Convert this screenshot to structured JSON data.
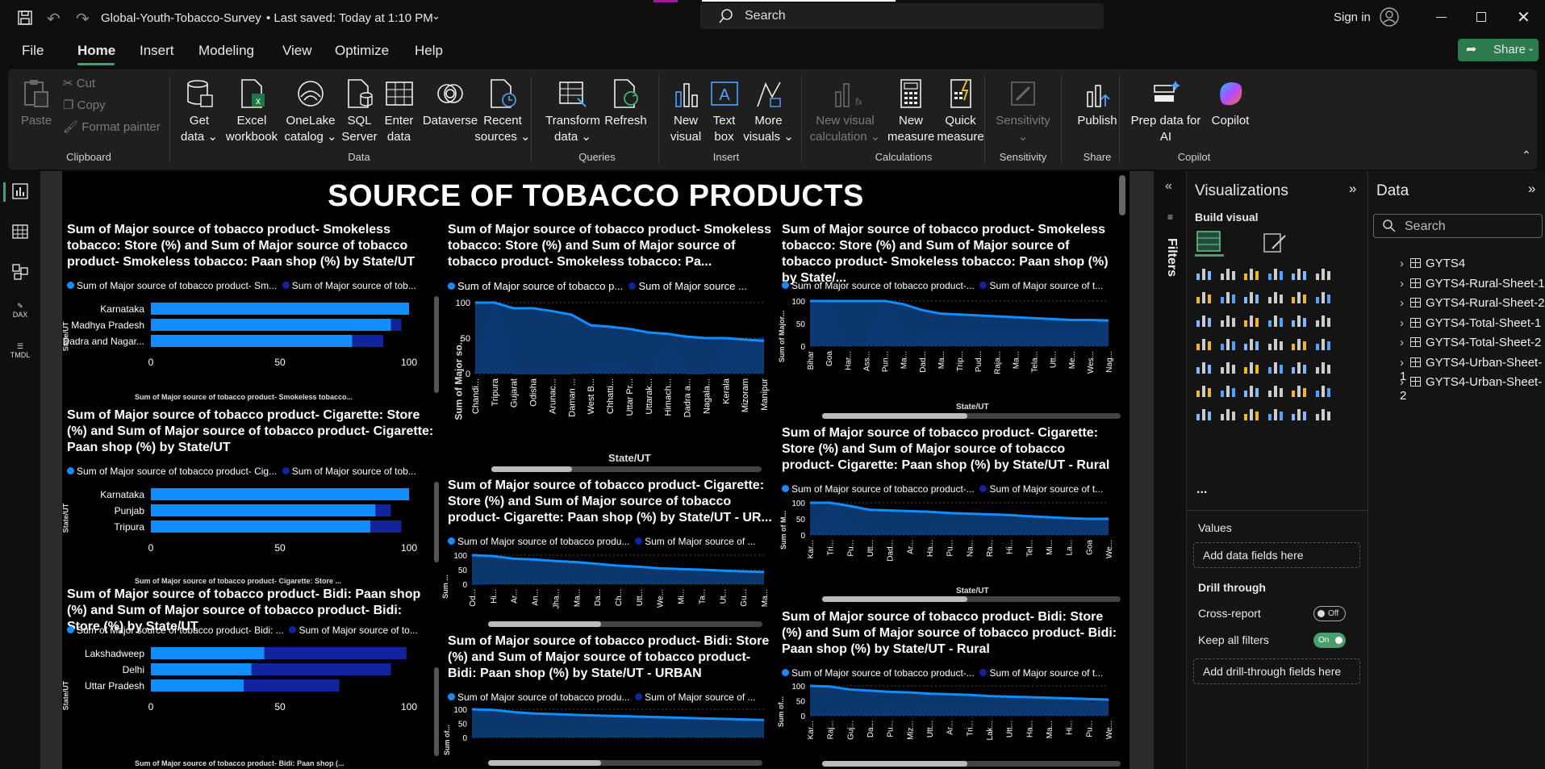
{
  "titlebar": {
    "file_name": "Global-Youth-Tobacco-Survey",
    "saved_status": "Last saved: Today at 1:10 PM",
    "search_placeholder": "Search",
    "sign_in": "Sign in"
  },
  "menu": {
    "tabs": [
      "File",
      "Home",
      "Insert",
      "Modeling",
      "View",
      "Optimize",
      "Help"
    ],
    "active_tab": "Home",
    "share_label": "Share"
  },
  "ribbon": {
    "clipboard": {
      "paste": "Paste",
      "cut": "Cut",
      "copy": "Copy",
      "format_painter": "Format painter",
      "group": "Clipboard"
    },
    "data": {
      "get_data_1": "Get",
      "get_data_2": "data",
      "excel_1": "Excel",
      "excel_2": "workbook",
      "onelake_1": "OneLake",
      "onelake_2": "catalog",
      "sql_1": "SQL",
      "sql_2": "Server",
      "enter_1": "Enter",
      "enter_2": "data",
      "dataverse": "Dataverse",
      "recent_1": "Recent",
      "recent_2": "sources",
      "group": "Data"
    },
    "queries": {
      "transform_1": "Transform",
      "transform_2": "data",
      "refresh": "Refresh",
      "group": "Queries"
    },
    "insert": {
      "new_visual_1": "New",
      "new_visual_2": "visual",
      "text_box_1": "Text",
      "text_box_2": "box",
      "more_visuals_1": "More",
      "more_visuals_2": "visuals",
      "group": "Insert"
    },
    "calculations": {
      "new_visual_calc_1": "New visual",
      "new_visual_calc_2": "calculation",
      "new_measure_1": "New",
      "new_measure_2": "measure",
      "quick_measure_1": "Quick",
      "quick_measure_2": "measure",
      "group": "Calculations"
    },
    "sensitivity": {
      "label": "Sensitivity",
      "group": "Sensitivity"
    },
    "share": {
      "publish": "Publish",
      "group": "Share"
    },
    "copilot": {
      "prep_1": "Prep data for",
      "prep_2": "AI",
      "copilot": "Copilot",
      "group": "Copilot"
    }
  },
  "report": {
    "title": "SOURCE OF TOBACCO PRODUCTS",
    "v1": {
      "title": "Sum of Major source of tobacco product- Smokeless tobacco: Store (%) and Sum of Major source of tobacco product- Smokeless tobacco: Paan shop (%) by State/UT",
      "legend1": "Sum of Major source of tobacco product- Sm...",
      "legend2": "Sum of Major source of tob...",
      "xlabel": "Sum of Major source of tobacco product- Smokeless tobacco...",
      "ylabel": "State/UT"
    },
    "v2": {
      "title": "Sum of Major source of tobacco product- Cigarette: Store (%) and Sum of Major source of tobacco product- Cigarette: Paan shop (%) by State/UT",
      "legend1": "Sum of Major source of tobacco product- Cig...",
      "legend2": "Sum of Major source of tob...",
      "xlabel": "Sum of Major source of tobacco product- Cigarette: Store ...",
      "ylabel": "State/UT"
    },
    "v3": {
      "title": "Sum of Major source of tobacco product- Bidi: Paan shop (%) and Sum of Major source of tobacco product- Bidi: Store (%) by State/UT",
      "legend1": "Sum of Major source of tobacco product- Bidi: ...",
      "legend2": "Sum of Major source of to...",
      "xlabel": "Sum of Major source of tobacco product- Bidi: Paan shop (...",
      "ylabel": "State/UT"
    },
    "v4": {
      "title": "Sum of Major source of tobacco product- Smokeless tobacco: Store (%) and Sum of Major source of tobacco product- Smokeless tobacco: Pa...",
      "legend1": "Sum of Major source of tobacco p...",
      "legend2": "Sum of Major source ...",
      "xlabel": "State/UT",
      "ylabel": "Sum of Major so..."
    },
    "v5": {
      "title": "Sum of Major source of tobacco product- Cigarette: Store (%) and Sum of Major source of tobacco product- Cigarette: Paan shop (%) by State/UT - UR...",
      "legend1": "Sum of Major source of tobacco produ...",
      "legend2": "Sum of Major source of ...",
      "ylabel": "Sum ..."
    },
    "v6": {
      "title": "Sum of Major source of tobacco product- Bidi: Store (%) and Sum of Major source of tobacco product- Bidi: Paan shop (%) by State/UT - URBAN",
      "legend1": "Sum of Major source of tobacco produ...",
      "legend2": "Sum of Major source of ...",
      "ylabel": "Sum of..."
    },
    "v7": {
      "title": "Sum of Major source of tobacco product- Smokeless tobacco: Store (%) and Sum of Major source of tobacco product- Smokeless tobacco: Paan shop (%) by State/...",
      "legend1": "Sum of Major source of tobacco product-...",
      "legend2": "Sum of Major source of t...",
      "xlabel": "State/UT",
      "ylabel": "Sum of Major..."
    },
    "v8": {
      "title": "Sum of Major source of tobacco product- Cigarette: Store (%) and Sum of Major source of tobacco product- Cigarette: Paan shop (%) by State/UT - Rural",
      "legend1": "Sum of Major source of tobacco product-...",
      "legend2": "Sum of Major source of t...",
      "xlabel": "State/UT",
      "ylabel": "Sum of M..."
    },
    "v9": {
      "title": "Sum of Major source of tobacco product- Bidi: Store (%) and Sum of Major source of tobacco product- Bidi: Paan shop (%) by State/UT - Rural",
      "legend1": "Sum of Major source of tobacco product-...",
      "legend2": "Sum of Major source of t...",
      "ylabel": "Sum of..."
    }
  },
  "filters_label": "Filters",
  "viz_pane": {
    "title": "Visualizations",
    "build_visual": "Build visual",
    "values": "Values",
    "add_data_fields": "Add data fields here",
    "drill_through": "Drill through",
    "cross_report": "Cross-report",
    "cross_report_state": "Off",
    "keep_all_filters": "Keep all filters",
    "keep_all_state": "On",
    "add_drill_fields": "Add drill-through fields here",
    "more": "..."
  },
  "data_pane": {
    "title": "Data",
    "search_placeholder": "Search",
    "tables": [
      "GYTS4",
      "GYTS4-Rural-Sheet-1",
      "GYTS4-Rural-Sheet-2",
      "GYTS4-Total-Sheet-1",
      "GYTS4-Total-Sheet-2",
      "GYTS4-Urban-Sheet-1",
      "GYTS4-Urban-Sheet-2"
    ]
  },
  "colors": {
    "series1": "#118dff",
    "series2": "#12239e",
    "accent": "#4a9d6e",
    "background": "#000000"
  },
  "chart_data": [
    {
      "type": "bar",
      "orientation": "horizontal",
      "stacked": true,
      "categories": [
        "Karnataka",
        "Madhya Pradesh",
        "Dadra and Nagar..."
      ],
      "series": [
        {
          "values": [
            100,
            93,
            78
          ]
        },
        {
          "values": [
            0,
            4,
            12
          ]
        }
      ],
      "xlim": [
        0,
        100
      ],
      "xticks": [
        "0",
        "50",
        "100"
      ]
    },
    {
      "type": "bar",
      "orientation": "horizontal",
      "stacked": true,
      "categories": [
        "Karnataka",
        "Punjab",
        "Tripura"
      ],
      "series": [
        {
          "values": [
            100,
            87,
            85
          ]
        },
        {
          "values": [
            0,
            6,
            12
          ]
        }
      ],
      "xlim": [
        0,
        100
      ],
      "xticks": [
        "0",
        "50",
        "100"
      ]
    },
    {
      "type": "bar",
      "orientation": "horizontal",
      "stacked": true,
      "categories": [
        "Lakshadweep",
        "Delhi",
        "Uttar Pradesh"
      ],
      "series": [
        {
          "values": [
            44,
            39,
            36
          ]
        },
        {
          "values": [
            55,
            54,
            37
          ]
        }
      ],
      "xlim": [
        0,
        100
      ],
      "xticks": [
        "0",
        "50",
        "100"
      ]
    },
    {
      "type": "area",
      "x": [
        "Chandi...",
        "Tripura",
        "Gujarat",
        "Odisha",
        "Arunac...",
        "Daman ...",
        "West B...",
        "Chhatti...",
        "Uttar Pr...",
        "Uttarak...",
        "Himach...",
        "Dadra a...",
        "Nagala...",
        "Kerala",
        "Mizoram",
        "Manipur"
      ],
      "series": [
        {
          "values": [
            100,
            100,
            92,
            92,
            88,
            83,
            68,
            66,
            63,
            58,
            56,
            52,
            50,
            50,
            48,
            46
          ]
        },
        {
          "values": [
            0,
            100,
            0,
            0,
            0,
            0,
            10,
            18,
            6,
            0,
            45,
            0,
            0,
            40,
            46,
            50
          ]
        }
      ],
      "ylim": [
        0,
        100
      ],
      "yticks": [
        "0",
        "50",
        "100"
      ]
    },
    {
      "type": "area",
      "x": [
        "Od...",
        "Hi...",
        "Ar...",
        "An...",
        "Jha...",
        "Ma...",
        "Da...",
        "Ch...",
        "Utt...",
        "We...",
        "Mi...",
        "Ta...",
        "Ut...",
        "Gu...",
        "Ma..."
      ],
      "series": [
        {
          "values": [
            100,
            97,
            88,
            85,
            80,
            76,
            70,
            64,
            60,
            55,
            52,
            50,
            47,
            44,
            42
          ]
        },
        {
          "values": [
            0,
            2,
            5,
            5,
            10,
            8,
            12,
            8,
            10,
            6,
            8,
            5,
            10,
            5,
            6
          ]
        }
      ],
      "ylim": [
        0,
        100
      ],
      "yticks": [
        "0",
        "50",
        "100"
      ]
    },
    {
      "type": "area",
      "x": [
        "",
        "",
        "",
        "",
        "",
        "",
        "",
        "",
        "",
        "",
        "",
        "",
        "",
        "",
        ""
      ],
      "series": [
        {
          "values": [
            100,
            98,
            90,
            85,
            83,
            80,
            78,
            76,
            74,
            72,
            70,
            68,
            66,
            64,
            62
          ]
        },
        {
          "values": [
            0,
            5,
            8,
            10,
            12,
            10,
            8,
            12,
            10,
            20,
            10,
            12,
            8,
            10,
            12
          ]
        }
      ],
      "ylim": [
        0,
        100
      ],
      "yticks": [
        "0",
        "50",
        "100"
      ]
    },
    {
      "type": "area",
      "x": [
        "Bihar",
        "Goa",
        "Har...",
        "Ass...",
        "Pun...",
        "Ma...",
        "Dad...",
        "Ma...",
        "Trip...",
        "Pud...",
        "Raja...",
        "Ma...",
        "Tela...",
        "Utt...",
        "Me...",
        "Wes...",
        "Nag..."
      ],
      "series": [
        {
          "values": [
            100,
            100,
            100,
            100,
            100,
            93,
            80,
            72,
            70,
            68,
            66,
            64,
            62,
            60,
            58,
            58,
            57
          ]
        },
        {
          "values": [
            100,
            100,
            0,
            10,
            100,
            20,
            25,
            30,
            28,
            35,
            30,
            32,
            34,
            35,
            38,
            30,
            56
          ]
        }
      ],
      "ylim": [
        0,
        100
      ],
      "yticks": [
        "0",
        "50",
        "100"
      ]
    },
    {
      "type": "area",
      "x": [
        "Kar...",
        "Tri...",
        "Pu...",
        "Utt...",
        "Dad...",
        "Ar...",
        "Ha...",
        "Pu...",
        "Na...",
        "Ra...",
        "Hi...",
        "Tel...",
        "Mi...",
        "La...",
        "Goa",
        "We..."
      ],
      "series": [
        {
          "values": [
            100,
            100,
            90,
            78,
            76,
            74,
            72,
            68,
            66,
            64,
            62,
            58,
            55,
            52,
            50,
            50
          ]
        },
        {
          "values": [
            0,
            100,
            30,
            10,
            12,
            15,
            18,
            20,
            22,
            25,
            28,
            30,
            32,
            35,
            38,
            40
          ]
        }
      ],
      "ylim": [
        0,
        100
      ],
      "yticks": [
        "0",
        "50",
        "100"
      ]
    },
    {
      "type": "area",
      "x": [
        "Kar...",
        "Raj...",
        "Guj...",
        "Da...",
        "Pu...",
        "Miz...",
        "Utt...",
        "Ar...",
        "Tri...",
        "Lak...",
        "Utt...",
        "Ha...",
        "Ma...",
        "Hi...",
        "Pu...",
        "We..."
      ],
      "series": [
        {
          "values": [
            100,
            98,
            88,
            84,
            80,
            78,
            74,
            72,
            70,
            66,
            64,
            62,
            60,
            58,
            56,
            54
          ]
        },
        {
          "values": [
            0,
            10,
            12,
            15,
            20,
            18,
            22,
            25,
            20,
            24,
            26,
            28,
            30,
            30,
            32,
            34
          ]
        }
      ],
      "ylim": [
        0,
        100
      ],
      "yticks": [
        "0",
        "50",
        "100"
      ]
    }
  ]
}
